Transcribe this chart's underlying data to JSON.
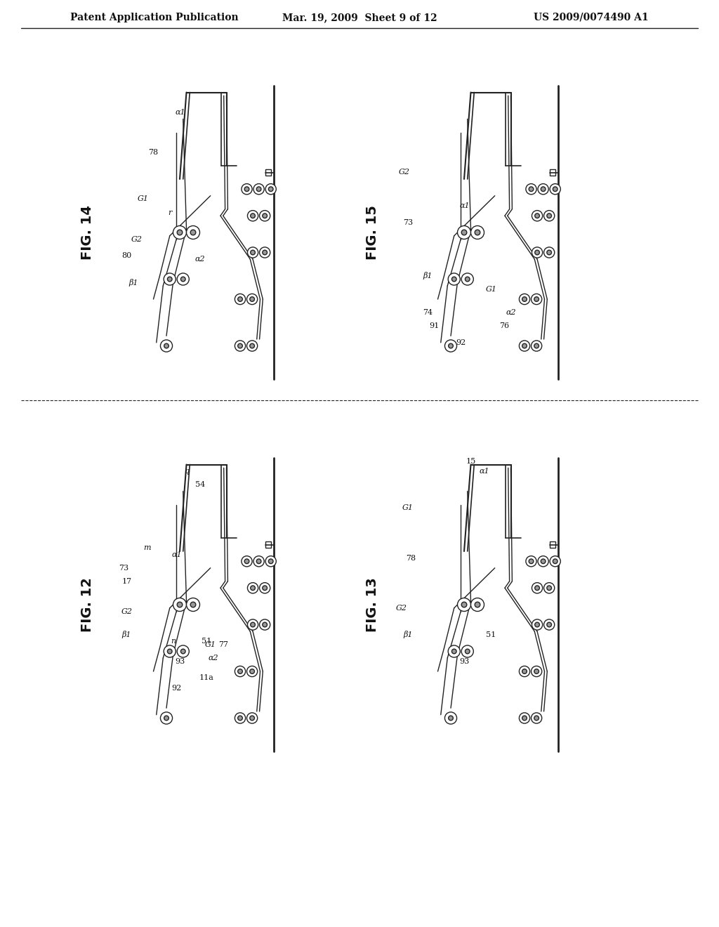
{
  "background_color": "#ffffff",
  "header_left": "Patent Application Publication",
  "header_mid": "Mar. 19, 2009  Sheet 9 of 12",
  "header_right": "US 2009/0074490 A1",
  "fig14_label": "FIG. 14",
  "fig15_label": "FIG. 15",
  "fig12_label": "FIG. 12",
  "fig13_label": "FIG. 13",
  "line_color": "#222222",
  "text_color": "#111111"
}
